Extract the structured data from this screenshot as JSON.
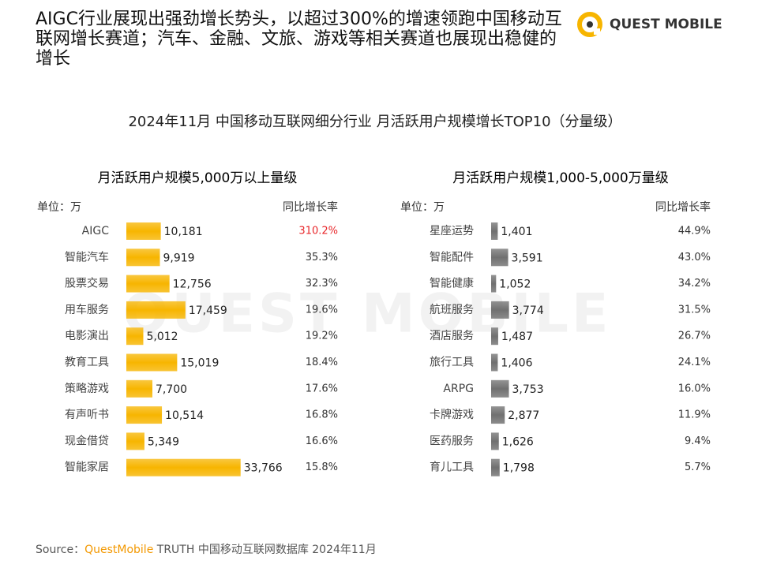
{
  "header": {
    "title": "AIGC行业展现出强劲增长势头，以超过300%的增速领跑中国移动互联网增长赛道；汽车、金融、文旅、游戏等相关赛道也展现出稳健的增长",
    "logo": "QUEST MOBILE"
  },
  "figure_title": "2024年11月 中国移动互联网细分行业 月活跃用户规模增长TOP10（分量级）",
  "chart_data": [
    {
      "type": "bar",
      "orientation": "horizontal",
      "title": "月活跃用户规模5,000万以上量级",
      "unit": "单位：万",
      "growth_header": "同比增长率",
      "categories": [
        "AIGC",
        "智能汽车",
        "股票交易",
        "用车服务",
        "电影演出",
        "教育工具",
        "策略游戏",
        "有声听书",
        "现金借贷",
        "智能家居"
      ],
      "values": [
        10181,
        9919,
        12756,
        17459,
        5012,
        15019,
        7700,
        10514,
        5349,
        33766
      ],
      "value_labels": [
        "10,181",
        "9,919",
        "12,756",
        "17,459",
        "5,012",
        "15,019",
        "7,700",
        "10,514",
        "5,349",
        "33,766"
      ],
      "growth_rates": [
        "310.2%",
        "35.3%",
        "32.3%",
        "19.6%",
        "19.2%",
        "18.4%",
        "17.6%",
        "16.8%",
        "16.6%",
        "15.8%"
      ],
      "highlight_index": 0,
      "highlight_color": "#e8262a",
      "color": "#f7b500",
      "xlim": [
        0,
        35000
      ]
    },
    {
      "type": "bar",
      "orientation": "horizontal",
      "title": "月活跃用户规模1,000-5,000万量级",
      "unit": "单位：万",
      "growth_header": "同比增长率",
      "categories": [
        "星座运势",
        "智能配件",
        "智能健康",
        "航班服务",
        "酒店服务",
        "旅行工具",
        "ARPG",
        "卡牌游戏",
        "医药服务",
        "育儿工具"
      ],
      "values": [
        1401,
        3591,
        1052,
        3774,
        1487,
        1406,
        3753,
        2877,
        1626,
        1798
      ],
      "value_labels": [
        "1,401",
        "3,591",
        "1,052",
        "3,774",
        "1,487",
        "1,406",
        "3,753",
        "2,877",
        "1,626",
        "1,798"
      ],
      "growth_rates": [
        "44.9%",
        "43.0%",
        "34.2%",
        "31.5%",
        "26.7%",
        "24.1%",
        "16.0%",
        "11.9%",
        "9.4%",
        "5.7%"
      ],
      "color": "#707070",
      "xlim": [
        0,
        25000
      ]
    }
  ],
  "source": {
    "label": "Source：",
    "brand": "QuestMobile",
    "text": "TRUTH 中国移动互联网数据库 2024年11月"
  }
}
